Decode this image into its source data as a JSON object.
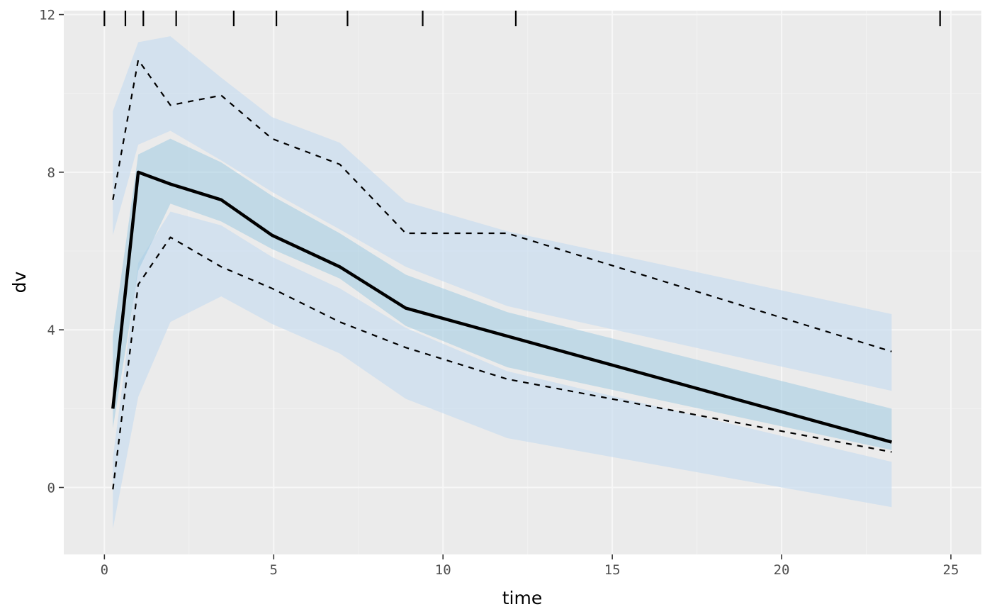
{
  "chart_data": {
    "type": "area",
    "xlabel": "time",
    "ylabel": "dv",
    "xlim": [
      -1.2,
      25.9
    ],
    "ylim": [
      -1.7,
      12.1
    ],
    "x_ticks": [
      "0",
      "5",
      "10",
      "15",
      "20",
      "25"
    ],
    "y_ticks": [
      "0",
      "4",
      "8",
      "12"
    ],
    "x_tick_values": [
      0,
      5,
      10,
      15,
      20,
      25
    ],
    "y_tick_values": [
      0,
      4,
      8,
      12
    ],
    "grid": true,
    "background": "#ebebeb",
    "rug_x": [
      0,
      0.62,
      1.15,
      2.12,
      3.82,
      5.08,
      7.18,
      9.4,
      12.15,
      24.68
    ],
    "bin_x": [
      0.25,
      1.0,
      1.95,
      3.45,
      4.95,
      6.95,
      8.9,
      11.9,
      23.25
    ],
    "bands": [
      {
        "fill": "#c6dbef",
        "opacity": 0.65,
        "lower": [
          6.4,
          8.7,
          9.05,
          8.3,
          7.5,
          6.55,
          5.6,
          4.6,
          2.45
        ],
        "upper": [
          9.55,
          11.3,
          11.45,
          10.4,
          9.4,
          8.75,
          7.25,
          6.5,
          4.4
        ]
      },
      {
        "fill": "#c6dbef",
        "opacity": 0.65,
        "lower": [
          -1.05,
          2.3,
          4.2,
          4.85,
          4.15,
          3.4,
          2.25,
          1.25,
          -0.5
        ],
        "upper": [
          0.75,
          5.7,
          7.0,
          6.65,
          5.85,
          5.05,
          4.05,
          2.95,
          0.65
        ]
      },
      {
        "fill": "#9ecae1",
        "opacity": 0.55,
        "lower": [
          1.5,
          5.5,
          7.2,
          6.75,
          6.05,
          5.3,
          4.1,
          3.05,
          0.95
        ],
        "upper": [
          3.85,
          8.45,
          8.85,
          8.25,
          7.4,
          6.45,
          5.4,
          4.45,
          2.0
        ]
      }
    ],
    "series": [
      {
        "role": "median",
        "style": "solid",
        "color": "#000000",
        "x": [
          0.25,
          1.0,
          1.95,
          3.45,
          4.95,
          6.95,
          8.9,
          23.25
        ],
        "values": [
          2.0,
          8.0,
          7.7,
          7.3,
          6.4,
          5.6,
          4.55,
          1.15
        ]
      },
      {
        "role": "upper",
        "style": "dashed",
        "color": "#000000",
        "x": [
          0.25,
          1.0,
          1.95,
          3.45,
          4.95,
          6.95,
          8.9,
          11.9,
          23.25
        ],
        "values": [
          7.3,
          10.85,
          9.7,
          9.95,
          8.85,
          8.2,
          6.45,
          6.45,
          3.45
        ]
      },
      {
        "role": "lower",
        "style": "dashed",
        "color": "#000000",
        "x": [
          0.25,
          1.0,
          1.95,
          3.45,
          4.95,
          6.95,
          8.9,
          11.9,
          23.25
        ],
        "values": [
          -0.05,
          5.15,
          6.35,
          5.6,
          5.05,
          4.2,
          3.55,
          2.75,
          0.9
        ]
      }
    ]
  }
}
